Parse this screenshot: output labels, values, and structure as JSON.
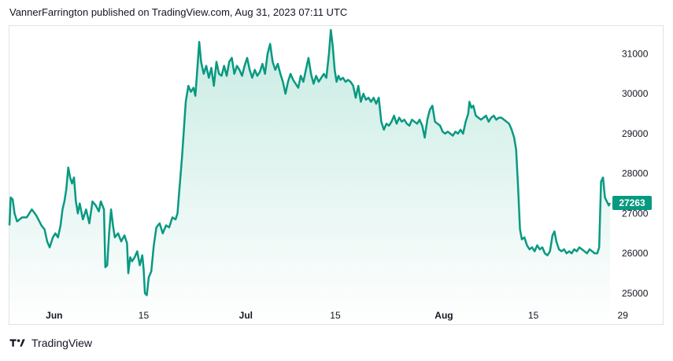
{
  "header": {
    "publisher_line": "VannerFarrington published on TradingView.com, Aug 31, 2023 07:11 UTC"
  },
  "footer": {
    "brand": "TradingView",
    "logo_icon": "tradingview-logo-icon"
  },
  "colors": {
    "line": "#089981",
    "fill_top": "#c8ebe3",
    "fill_bottom": "#ffffff",
    "tag_bg": "#089981"
  },
  "chart_data": {
    "type": "area",
    "title": "",
    "xlabel": "",
    "ylabel": "",
    "ylim": [
      24700,
      31700
    ],
    "yticks": [
      25000,
      26000,
      27000,
      28000,
      29000,
      30000,
      31000
    ],
    "xticks": [
      {
        "label": "Jun",
        "day": 1,
        "bold": true
      },
      {
        "label": "15",
        "day": 15,
        "bold": false
      },
      {
        "label": "Jul",
        "day": 31,
        "bold": true
      },
      {
        "label": "15",
        "day": 45,
        "bold": false
      },
      {
        "label": "Aug",
        "day": 62,
        "bold": true
      },
      {
        "label": "15",
        "day": 76,
        "bold": false
      },
      {
        "label": "29",
        "day": 90,
        "bold": false
      }
    ],
    "last_price_label": "27263",
    "last_price": 27263,
    "series": [
      {
        "points": [
          [
            -6.0,
            26700
          ],
          [
            -5.8,
            27400
          ],
          [
            -5.5,
            27350
          ],
          [
            -5.2,
            27000
          ],
          [
            -4.8,
            26800
          ],
          [
            -4.0,
            26900
          ],
          [
            -3.3,
            26900
          ],
          [
            -2.5,
            27100
          ],
          [
            -1.8,
            26950
          ],
          [
            -1.0,
            26700
          ],
          [
            -0.5,
            26600
          ],
          [
            -0.1,
            26300
          ],
          [
            0.3,
            26150
          ],
          [
            0.8,
            26400
          ],
          [
            1.2,
            26500
          ],
          [
            1.6,
            26400
          ],
          [
            2.0,
            26700
          ],
          [
            2.3,
            27100
          ],
          [
            2.6,
            27300
          ],
          [
            2.9,
            27600
          ],
          [
            3.2,
            28150
          ],
          [
            3.5,
            27900
          ],
          [
            3.8,
            27750
          ],
          [
            4.1,
            27900
          ],
          [
            4.4,
            27300
          ],
          [
            4.7,
            27000
          ],
          [
            5.0,
            27250
          ],
          [
            5.5,
            26850
          ],
          [
            6.0,
            27100
          ],
          [
            6.5,
            26750
          ],
          [
            7.0,
            27300
          ],
          [
            7.5,
            27200
          ],
          [
            8.0,
            27050
          ],
          [
            8.3,
            27300
          ],
          [
            8.8,
            27100
          ],
          [
            9.0,
            25650
          ],
          [
            9.3,
            25700
          ],
          [
            9.6,
            26500
          ],
          [
            9.9,
            27100
          ],
          [
            10.2,
            26700
          ],
          [
            10.5,
            26400
          ],
          [
            11.0,
            26500
          ],
          [
            11.5,
            26300
          ],
          [
            12.0,
            26450
          ],
          [
            12.4,
            26250
          ],
          [
            12.6,
            25500
          ],
          [
            12.9,
            25900
          ],
          [
            13.2,
            25800
          ],
          [
            13.6,
            25900
          ],
          [
            14.0,
            26050
          ],
          [
            14.4,
            25700
          ],
          [
            14.8,
            25950
          ],
          [
            15.0,
            25600
          ],
          [
            15.2,
            25000
          ],
          [
            15.5,
            24950
          ],
          [
            15.8,
            25400
          ],
          [
            16.2,
            25550
          ],
          [
            16.6,
            26200
          ],
          [
            17.0,
            26650
          ],
          [
            17.5,
            26750
          ],
          [
            18.0,
            26500
          ],
          [
            18.5,
            26700
          ],
          [
            19.0,
            26650
          ],
          [
            19.5,
            26900
          ],
          [
            20.0,
            26850
          ],
          [
            20.3,
            27000
          ],
          [
            20.6,
            27600
          ],
          [
            21.0,
            28400
          ],
          [
            21.3,
            29100
          ],
          [
            21.6,
            29800
          ],
          [
            22.0,
            30200
          ],
          [
            22.4,
            30050
          ],
          [
            22.8,
            30150
          ],
          [
            23.1,
            29950
          ],
          [
            23.4,
            30600
          ],
          [
            23.7,
            31300
          ],
          [
            24.0,
            30800
          ],
          [
            24.4,
            30500
          ],
          [
            24.8,
            30700
          ],
          [
            25.2,
            30400
          ],
          [
            25.6,
            30650
          ],
          [
            26.0,
            30200
          ],
          [
            26.4,
            30800
          ],
          [
            26.8,
            30500
          ],
          [
            27.2,
            30450
          ],
          [
            27.6,
            30700
          ],
          [
            28.0,
            30450
          ],
          [
            28.4,
            30800
          ],
          [
            28.8,
            30900
          ],
          [
            29.2,
            30500
          ],
          [
            29.6,
            30700
          ],
          [
            30.0,
            30600
          ],
          [
            30.4,
            30450
          ],
          [
            30.8,
            30700
          ],
          [
            31.2,
            30900
          ],
          [
            31.6,
            30600
          ],
          [
            32.0,
            30400
          ],
          [
            32.4,
            30600
          ],
          [
            32.8,
            30450
          ],
          [
            33.2,
            30550
          ],
          [
            33.6,
            30750
          ],
          [
            34.0,
            30500
          ],
          [
            34.4,
            31000
          ],
          [
            34.8,
            31250
          ],
          [
            35.2,
            30800
          ],
          [
            35.6,
            30600
          ],
          [
            36.0,
            30750
          ],
          [
            36.4,
            30500
          ],
          [
            36.8,
            30300
          ],
          [
            37.2,
            30000
          ],
          [
            37.6,
            30300
          ],
          [
            38.0,
            30500
          ],
          [
            38.4,
            30350
          ],
          [
            38.8,
            30250
          ],
          [
            39.2,
            30150
          ],
          [
            39.6,
            30450
          ],
          [
            40.0,
            30300
          ],
          [
            40.4,
            30600
          ],
          [
            40.8,
            30900
          ],
          [
            41.2,
            30500
          ],
          [
            41.6,
            30250
          ],
          [
            42.0,
            30450
          ],
          [
            42.4,
            30300
          ],
          [
            42.8,
            30400
          ],
          [
            43.2,
            30500
          ],
          [
            43.6,
            30400
          ],
          [
            44.0,
            31000
          ],
          [
            44.3,
            31600
          ],
          [
            44.6,
            31200
          ],
          [
            44.9,
            30600
          ],
          [
            45.2,
            30300
          ],
          [
            45.5,
            30450
          ],
          [
            45.8,
            30350
          ],
          [
            46.2,
            30400
          ],
          [
            46.6,
            30300
          ],
          [
            47.0,
            30350
          ],
          [
            47.4,
            30300
          ],
          [
            47.8,
            30200
          ],
          [
            48.2,
            29900
          ],
          [
            48.6,
            30200
          ],
          [
            49.0,
            29800
          ],
          [
            49.4,
            30000
          ],
          [
            49.8,
            29850
          ],
          [
            50.2,
            29900
          ],
          [
            50.6,
            29800
          ],
          [
            51.0,
            29900
          ],
          [
            51.4,
            29750
          ],
          [
            51.8,
            29900
          ],
          [
            52.2,
            29300
          ],
          [
            52.6,
            29100
          ],
          [
            53.0,
            29250
          ],
          [
            53.4,
            29200
          ],
          [
            53.8,
            29300
          ],
          [
            54.2,
            29450
          ],
          [
            54.6,
            29250
          ],
          [
            55.0,
            29400
          ],
          [
            55.4,
            29300
          ],
          [
            55.8,
            29350
          ],
          [
            56.2,
            29250
          ],
          [
            56.6,
            29200
          ],
          [
            57.0,
            29350
          ],
          [
            57.4,
            29300
          ],
          [
            57.8,
            29250
          ],
          [
            58.2,
            29350
          ],
          [
            58.6,
            29200
          ],
          [
            59.0,
            28900
          ],
          [
            59.4,
            29350
          ],
          [
            59.8,
            29600
          ],
          [
            60.2,
            29700
          ],
          [
            60.6,
            29300
          ],
          [
            61.0,
            29250
          ],
          [
            61.4,
            29200
          ],
          [
            61.8,
            29050
          ],
          [
            62.2,
            29000
          ],
          [
            62.6,
            29050
          ],
          [
            63.0,
            29000
          ],
          [
            63.4,
            28950
          ],
          [
            63.8,
            29050
          ],
          [
            64.2,
            29000
          ],
          [
            64.6,
            29100
          ],
          [
            65.0,
            29000
          ],
          [
            65.4,
            29300
          ],
          [
            65.8,
            29500
          ],
          [
            66.0,
            29800
          ],
          [
            66.3,
            29650
          ],
          [
            66.6,
            29700
          ],
          [
            67.0,
            29450
          ],
          [
            67.4,
            29400
          ],
          [
            67.8,
            29350
          ],
          [
            68.2,
            29400
          ],
          [
            68.6,
            29450
          ],
          [
            69.0,
            29300
          ],
          [
            69.4,
            29400
          ],
          [
            69.8,
            29450
          ],
          [
            70.2,
            29350
          ],
          [
            70.6,
            29400
          ],
          [
            71.0,
            29400
          ],
          [
            71.4,
            29350
          ],
          [
            71.8,
            29300
          ],
          [
            72.2,
            29250
          ],
          [
            72.6,
            29100
          ],
          [
            73.0,
            28900
          ],
          [
            73.3,
            28600
          ],
          [
            73.6,
            27700
          ],
          [
            73.9,
            26600
          ],
          [
            74.2,
            26350
          ],
          [
            74.6,
            26400
          ],
          [
            75.0,
            26200
          ],
          [
            75.4,
            26100
          ],
          [
            75.8,
            26150
          ],
          [
            76.2,
            26050
          ],
          [
            76.6,
            26200
          ],
          [
            77.0,
            26100
          ],
          [
            77.4,
            26150
          ],
          [
            77.8,
            26000
          ],
          [
            78.2,
            25950
          ],
          [
            78.6,
            26050
          ],
          [
            79.0,
            26450
          ],
          [
            79.3,
            26550
          ],
          [
            79.6,
            26300
          ],
          [
            80.0,
            26100
          ],
          [
            80.4,
            26050
          ],
          [
            80.8,
            26100
          ],
          [
            81.2,
            26000
          ],
          [
            81.6,
            26050
          ],
          [
            82.0,
            26000
          ],
          [
            82.4,
            26100
          ],
          [
            82.8,
            26050
          ],
          [
            83.2,
            26150
          ],
          [
            83.6,
            26100
          ],
          [
            84.0,
            26050
          ],
          [
            84.4,
            26000
          ],
          [
            84.8,
            26100
          ],
          [
            85.2,
            26050
          ],
          [
            85.6,
            26000
          ],
          [
            86.0,
            26000
          ],
          [
            86.3,
            26150
          ],
          [
            86.6,
            27800
          ],
          [
            86.9,
            27900
          ],
          [
            87.2,
            27400
          ],
          [
            87.5,
            27300
          ],
          [
            87.8,
            27200
          ],
          [
            88.0,
            27263
          ]
        ]
      }
    ]
  }
}
